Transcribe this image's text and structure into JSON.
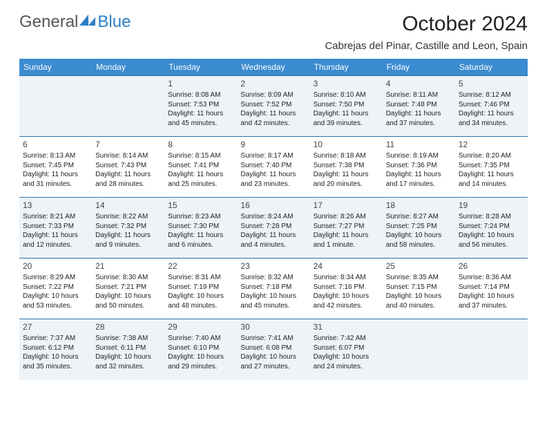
{
  "brand": {
    "part1": "General",
    "part2": "Blue"
  },
  "title": "October 2024",
  "location": "Cabrejas del Pinar, Castille and Leon, Spain",
  "day_headers": [
    "Sunday",
    "Monday",
    "Tuesday",
    "Wednesday",
    "Thursday",
    "Friday",
    "Saturday"
  ],
  "header_bg": "#3b8bd0",
  "row_alt_bg": "#eef3f7",
  "row_border": "#2f6fa8",
  "weeks": [
    [
      null,
      null,
      {
        "n": "1",
        "sr": "Sunrise: 8:08 AM",
        "ss": "Sunset: 7:53 PM",
        "dl": "Daylight: 11 hours and 45 minutes."
      },
      {
        "n": "2",
        "sr": "Sunrise: 8:09 AM",
        "ss": "Sunset: 7:52 PM",
        "dl": "Daylight: 11 hours and 42 minutes."
      },
      {
        "n": "3",
        "sr": "Sunrise: 8:10 AM",
        "ss": "Sunset: 7:50 PM",
        "dl": "Daylight: 11 hours and 39 minutes."
      },
      {
        "n": "4",
        "sr": "Sunrise: 8:11 AM",
        "ss": "Sunset: 7:48 PM",
        "dl": "Daylight: 11 hours and 37 minutes."
      },
      {
        "n": "5",
        "sr": "Sunrise: 8:12 AM",
        "ss": "Sunset: 7:46 PM",
        "dl": "Daylight: 11 hours and 34 minutes."
      }
    ],
    [
      {
        "n": "6",
        "sr": "Sunrise: 8:13 AM",
        "ss": "Sunset: 7:45 PM",
        "dl": "Daylight: 11 hours and 31 minutes."
      },
      {
        "n": "7",
        "sr": "Sunrise: 8:14 AM",
        "ss": "Sunset: 7:43 PM",
        "dl": "Daylight: 11 hours and 28 minutes."
      },
      {
        "n": "8",
        "sr": "Sunrise: 8:15 AM",
        "ss": "Sunset: 7:41 PM",
        "dl": "Daylight: 11 hours and 25 minutes."
      },
      {
        "n": "9",
        "sr": "Sunrise: 8:17 AM",
        "ss": "Sunset: 7:40 PM",
        "dl": "Daylight: 11 hours and 23 minutes."
      },
      {
        "n": "10",
        "sr": "Sunrise: 8:18 AM",
        "ss": "Sunset: 7:38 PM",
        "dl": "Daylight: 11 hours and 20 minutes."
      },
      {
        "n": "11",
        "sr": "Sunrise: 8:19 AM",
        "ss": "Sunset: 7:36 PM",
        "dl": "Daylight: 11 hours and 17 minutes."
      },
      {
        "n": "12",
        "sr": "Sunrise: 8:20 AM",
        "ss": "Sunset: 7:35 PM",
        "dl": "Daylight: 11 hours and 14 minutes."
      }
    ],
    [
      {
        "n": "13",
        "sr": "Sunrise: 8:21 AM",
        "ss": "Sunset: 7:33 PM",
        "dl": "Daylight: 11 hours and 12 minutes."
      },
      {
        "n": "14",
        "sr": "Sunrise: 8:22 AM",
        "ss": "Sunset: 7:32 PM",
        "dl": "Daylight: 11 hours and 9 minutes."
      },
      {
        "n": "15",
        "sr": "Sunrise: 8:23 AM",
        "ss": "Sunset: 7:30 PM",
        "dl": "Daylight: 11 hours and 6 minutes."
      },
      {
        "n": "16",
        "sr": "Sunrise: 8:24 AM",
        "ss": "Sunset: 7:28 PM",
        "dl": "Daylight: 11 hours and 4 minutes."
      },
      {
        "n": "17",
        "sr": "Sunrise: 8:26 AM",
        "ss": "Sunset: 7:27 PM",
        "dl": "Daylight: 11 hours and 1 minute."
      },
      {
        "n": "18",
        "sr": "Sunrise: 8:27 AM",
        "ss": "Sunset: 7:25 PM",
        "dl": "Daylight: 10 hours and 58 minutes."
      },
      {
        "n": "19",
        "sr": "Sunrise: 8:28 AM",
        "ss": "Sunset: 7:24 PM",
        "dl": "Daylight: 10 hours and 56 minutes."
      }
    ],
    [
      {
        "n": "20",
        "sr": "Sunrise: 8:29 AM",
        "ss": "Sunset: 7:22 PM",
        "dl": "Daylight: 10 hours and 53 minutes."
      },
      {
        "n": "21",
        "sr": "Sunrise: 8:30 AM",
        "ss": "Sunset: 7:21 PM",
        "dl": "Daylight: 10 hours and 50 minutes."
      },
      {
        "n": "22",
        "sr": "Sunrise: 8:31 AM",
        "ss": "Sunset: 7:19 PM",
        "dl": "Daylight: 10 hours and 48 minutes."
      },
      {
        "n": "23",
        "sr": "Sunrise: 8:32 AM",
        "ss": "Sunset: 7:18 PM",
        "dl": "Daylight: 10 hours and 45 minutes."
      },
      {
        "n": "24",
        "sr": "Sunrise: 8:34 AM",
        "ss": "Sunset: 7:16 PM",
        "dl": "Daylight: 10 hours and 42 minutes."
      },
      {
        "n": "25",
        "sr": "Sunrise: 8:35 AM",
        "ss": "Sunset: 7:15 PM",
        "dl": "Daylight: 10 hours and 40 minutes."
      },
      {
        "n": "26",
        "sr": "Sunrise: 8:36 AM",
        "ss": "Sunset: 7:14 PM",
        "dl": "Daylight: 10 hours and 37 minutes."
      }
    ],
    [
      {
        "n": "27",
        "sr": "Sunrise: 7:37 AM",
        "ss": "Sunset: 6:12 PM",
        "dl": "Daylight: 10 hours and 35 minutes."
      },
      {
        "n": "28",
        "sr": "Sunrise: 7:38 AM",
        "ss": "Sunset: 6:11 PM",
        "dl": "Daylight: 10 hours and 32 minutes."
      },
      {
        "n": "29",
        "sr": "Sunrise: 7:40 AM",
        "ss": "Sunset: 6:10 PM",
        "dl": "Daylight: 10 hours and 29 minutes."
      },
      {
        "n": "30",
        "sr": "Sunrise: 7:41 AM",
        "ss": "Sunset: 6:08 PM",
        "dl": "Daylight: 10 hours and 27 minutes."
      },
      {
        "n": "31",
        "sr": "Sunrise: 7:42 AM",
        "ss": "Sunset: 6:07 PM",
        "dl": "Daylight: 10 hours and 24 minutes."
      },
      null,
      null
    ]
  ]
}
